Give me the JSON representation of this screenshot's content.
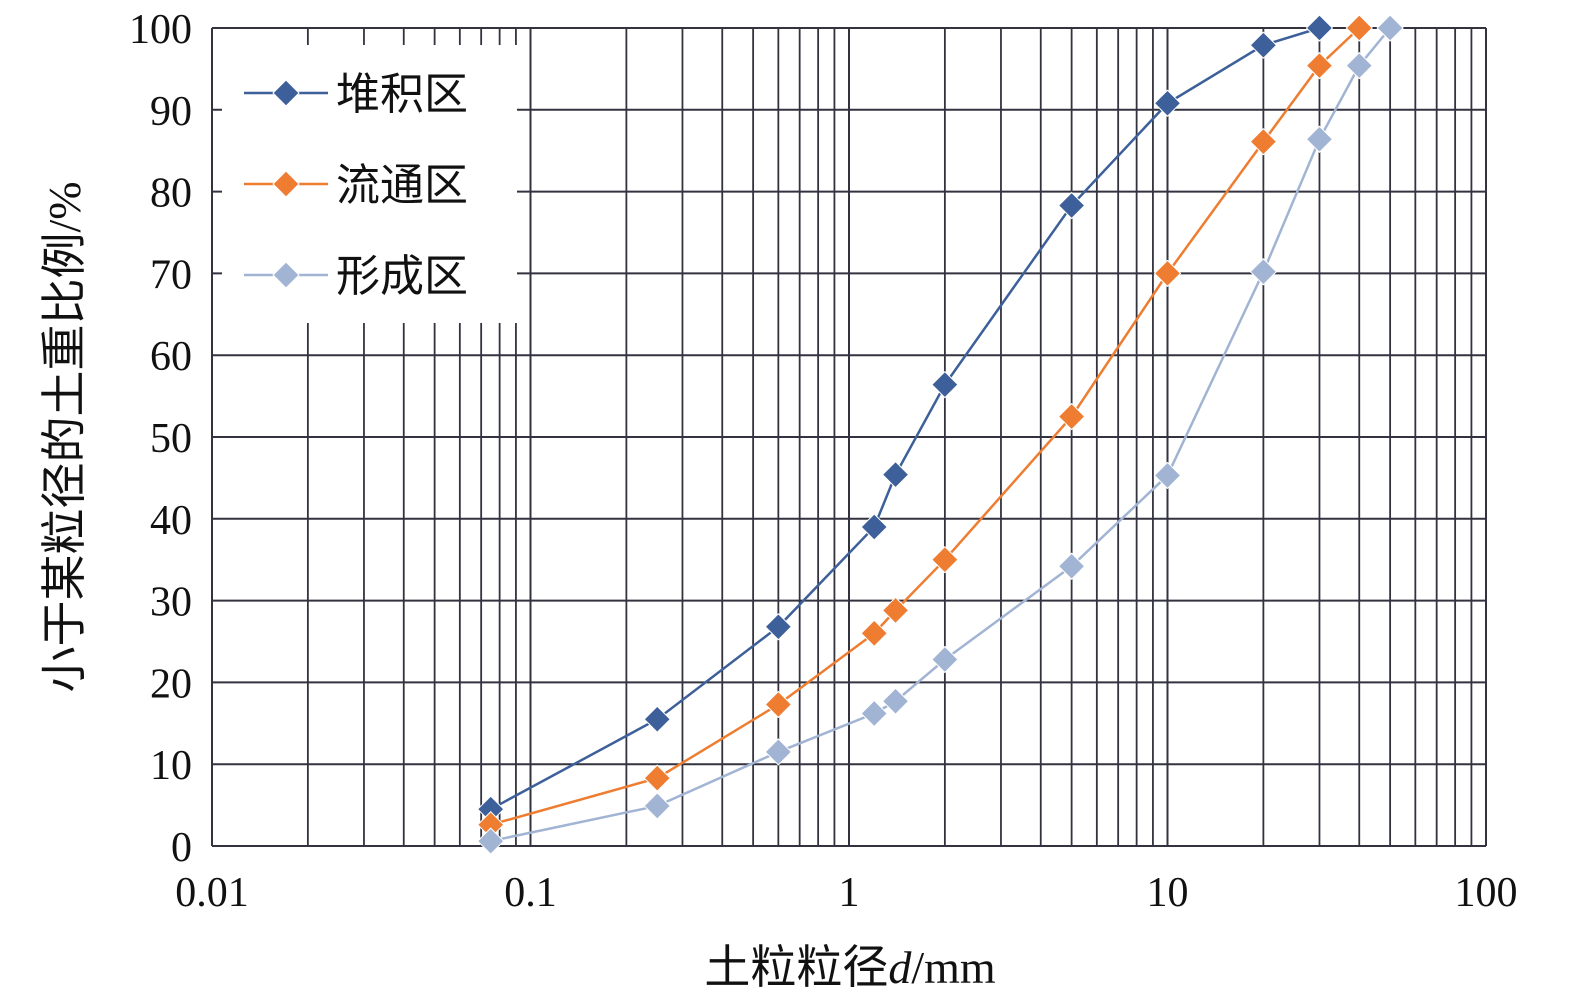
{
  "chart_data": {
    "type": "line",
    "xscale": "log",
    "xlim": [
      0.01,
      100
    ],
    "ylim": [
      0,
      100
    ],
    "grid": true,
    "legend_position": "top-left",
    "xlabel_prefix": "土粒粒径",
    "xlabel_var": "d",
    "xlabel_suffix": "/mm",
    "ylabel": "小于某粒径的土重比例/%",
    "x_ticks": [
      {
        "value": 0.01,
        "label": "0.01"
      },
      {
        "value": 0.1,
        "label": "0.1"
      },
      {
        "value": 1,
        "label": "1"
      },
      {
        "value": 10,
        "label": "10"
      },
      {
        "value": 100,
        "label": "100"
      }
    ],
    "y_ticks": [
      {
        "value": 0,
        "label": "0"
      },
      {
        "value": 10,
        "label": "10"
      },
      {
        "value": 20,
        "label": "20"
      },
      {
        "value": 30,
        "label": "30"
      },
      {
        "value": 40,
        "label": "40"
      },
      {
        "value": 50,
        "label": "50"
      },
      {
        "value": 60,
        "label": "60"
      },
      {
        "value": 70,
        "label": "70"
      },
      {
        "value": 80,
        "label": "80"
      },
      {
        "value": 90,
        "label": "90"
      },
      {
        "value": 100,
        "label": "100"
      }
    ],
    "series": [
      {
        "name": "堆积区",
        "color": "#3d5f9a",
        "marker": "diamond",
        "x": [
          0.075,
          0.25,
          0.6,
          1.2,
          1.4,
          2,
          5,
          10,
          20,
          30
        ],
        "y": [
          4.5,
          15.5,
          26.8,
          39.0,
          45.4,
          56.4,
          78.3,
          90.8,
          97.9,
          100
        ]
      },
      {
        "name": "流通区",
        "color": "#ee7d31",
        "marker": "diamond",
        "x": [
          0.075,
          0.25,
          0.6,
          1.2,
          1.4,
          2,
          5,
          10,
          20,
          30,
          40
        ],
        "y": [
          2.6,
          8.3,
          17.3,
          26.0,
          28.8,
          35.0,
          52.5,
          70.0,
          86.1,
          95.4,
          100
        ]
      },
      {
        "name": "形成区",
        "color": "#a2b4d3",
        "marker": "diamond",
        "x": [
          0.075,
          0.25,
          0.6,
          1.2,
          1.4,
          2,
          5,
          10,
          20,
          30,
          40,
          50
        ],
        "y": [
          0.6,
          4.9,
          11.5,
          16.2,
          17.7,
          22.8,
          34.2,
          45.3,
          70.2,
          86.4,
          95.4,
          100
        ]
      }
    ]
  },
  "colors": {
    "grid": "#333340",
    "background": "#ffffff",
    "text": "#111111"
  }
}
